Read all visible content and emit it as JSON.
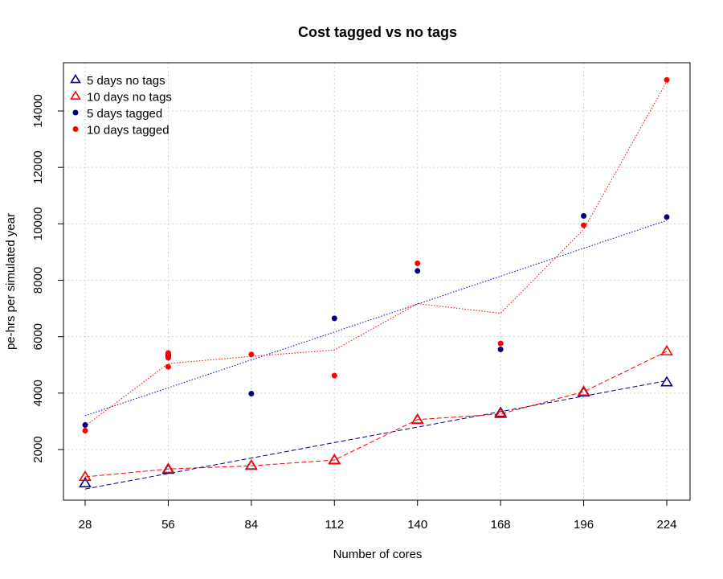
{
  "chart_data": {
    "type": "scatter",
    "title": "Cost tagged vs no tags",
    "xlabel": "Number of cores",
    "ylabel": "pe-hrs per simulated year",
    "xlim": [
      28,
      224
    ],
    "ylim": [
      500,
      15200
    ],
    "x_ticks": [
      28,
      56,
      84,
      112,
      140,
      168,
      196,
      224
    ],
    "y_ticks": [
      2000,
      4000,
      6000,
      8000,
      10000,
      12000,
      14000
    ],
    "grid": true,
    "legend_position": "top-left",
    "colors": {
      "navy": "#000080",
      "red": "#ff0000",
      "blue_line": "#0000cc"
    },
    "series": [
      {
        "name": "5 days no tags",
        "marker": "open-triangle",
        "color": "#000080",
        "points": [
          [
            28,
            800
          ],
          [
            56,
            1280
          ],
          [
            84,
            1430
          ],
          [
            112,
            1620
          ],
          [
            140,
            3050
          ],
          [
            168,
            3300
          ],
          [
            196,
            4020
          ],
          [
            224,
            4380
          ]
        ]
      },
      {
        "name": "10 days no tags",
        "marker": "open-triangle",
        "color": "#ff0000",
        "points": [
          [
            28,
            1030
          ],
          [
            56,
            1310
          ],
          [
            84,
            1420
          ],
          [
            112,
            1630
          ],
          [
            140,
            3060
          ],
          [
            168,
            3260
          ],
          [
            196,
            4050
          ],
          [
            224,
            5480
          ]
        ]
      },
      {
        "name": "5 days tagged",
        "marker": "filled-circle",
        "color": "#000080",
        "points": [
          [
            28,
            2870
          ],
          [
            56,
            5300
          ],
          [
            56,
            5370
          ],
          [
            84,
            3980
          ],
          [
            112,
            6650
          ],
          [
            140,
            8330
          ],
          [
            168,
            5550
          ],
          [
            196,
            10280
          ],
          [
            224,
            10240
          ]
        ]
      },
      {
        "name": "10 days tagged",
        "marker": "filled-circle",
        "color": "#ff0000",
        "points": [
          [
            28,
            2670
          ],
          [
            56,
            5420
          ],
          [
            56,
            5250
          ],
          [
            56,
            4930
          ],
          [
            84,
            5370
          ],
          [
            112,
            4620
          ],
          [
            140,
            8600
          ],
          [
            168,
            5760
          ],
          [
            196,
            9950
          ],
          [
            224,
            15100
          ]
        ]
      }
    ],
    "lines": [
      {
        "name": "5 days no tags fit",
        "style": "dashed",
        "color": "#000080",
        "points": [
          [
            28,
            600
          ],
          [
            224,
            4440
          ]
        ]
      },
      {
        "name": "10 days no tags trend",
        "style": "dashed",
        "color": "#ff0000",
        "points": [
          [
            28,
            1030
          ],
          [
            56,
            1310
          ],
          [
            84,
            1420
          ],
          [
            112,
            1630
          ],
          [
            140,
            3060
          ],
          [
            168,
            3260
          ],
          [
            196,
            4050
          ],
          [
            224,
            5480
          ]
        ]
      },
      {
        "name": "5 days tagged fit",
        "style": "dotted",
        "color": "#0000cc",
        "points": [
          [
            28,
            3200
          ],
          [
            224,
            10120
          ]
        ]
      },
      {
        "name": "10 days tagged trend",
        "style": "dotted",
        "color": "#ff0000",
        "points": [
          [
            28,
            2830
          ],
          [
            56,
            5050
          ],
          [
            84,
            5300
          ],
          [
            112,
            5530
          ],
          [
            140,
            7170
          ],
          [
            168,
            6830
          ],
          [
            196,
            9800
          ],
          [
            224,
            15050
          ]
        ]
      }
    ]
  }
}
